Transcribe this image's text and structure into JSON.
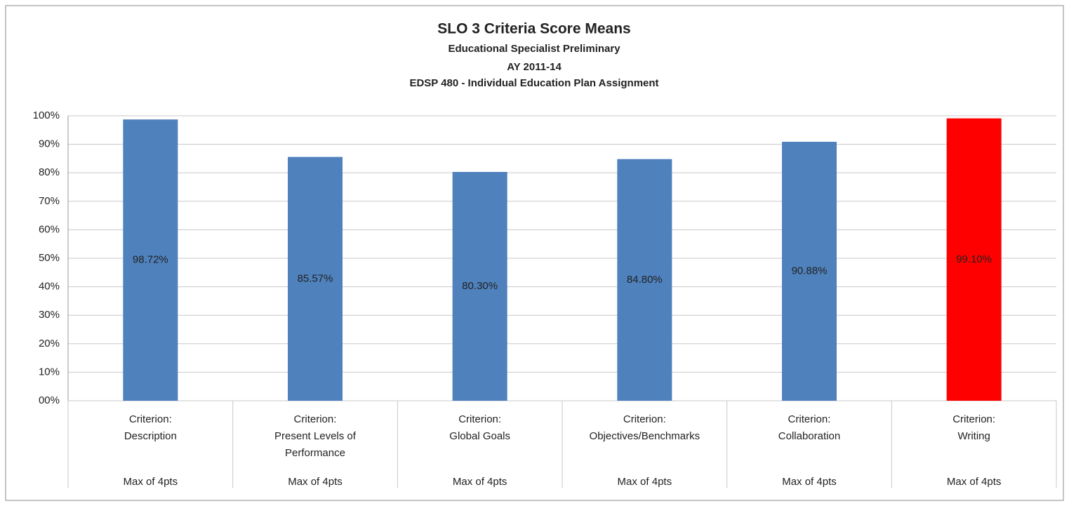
{
  "chart_data": {
    "type": "bar",
    "title": "SLO 3 Criteria Score Means",
    "subtitles": [
      "Educational Specialist Preliminary",
      "AY 2011-14",
      "EDSP 480 - Individual Education Plan Assignment"
    ],
    "categories": [
      "Criterion:\nDescription",
      "Criterion:\nPresent Levels of\nPerformance",
      "Criterion:\nGlobal Goals",
      "Criterion:\nObjectives/Benchmarks",
      "Criterion:\nCollaboration",
      "Criterion:\nWriting"
    ],
    "category_notes": [
      "Max of 4pts",
      "Max of 4pts",
      "Max of 4pts",
      "Max of 4pts",
      "Max of 4pts",
      "Max of 4pts"
    ],
    "values": [
      98.72,
      85.57,
      80.3,
      84.8,
      90.88,
      99.1
    ],
    "value_labels": [
      "98.72%",
      "85.57%",
      "80.30%",
      "84.80%",
      "90.88%",
      "99.10%"
    ],
    "colors": [
      "#4f81bd",
      "#4f81bd",
      "#4f81bd",
      "#4f81bd",
      "#4f81bd",
      "#ff0000"
    ],
    "ylim": [
      0,
      100
    ],
    "yticks": [
      {
        "value": 0,
        "label": "00%"
      },
      {
        "value": 10,
        "label": "10%"
      },
      {
        "value": 20,
        "label": "20%"
      },
      {
        "value": 30,
        "label": "30%"
      },
      {
        "value": 40,
        "label": "40%"
      },
      {
        "value": 50,
        "label": "50%"
      },
      {
        "value": 60,
        "label": "60%"
      },
      {
        "value": 70,
        "label": "70%"
      },
      {
        "value": 80,
        "label": "80%"
      },
      {
        "value": 90,
        "label": "90%"
      },
      {
        "value": 100,
        "label": "100%"
      }
    ],
    "grid": true
  }
}
